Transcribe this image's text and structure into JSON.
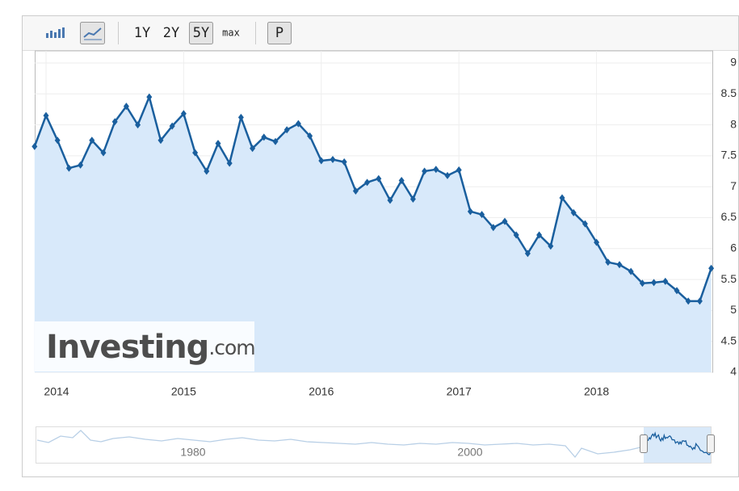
{
  "toolbar": {
    "ranges": [
      "1Y",
      "2Y",
      "5Y",
      "max"
    ],
    "active": "5Y",
    "p": "P"
  },
  "watermark": [
    "Investing",
    ".com"
  ],
  "navigator": {
    "labels": [
      "1980",
      "2000"
    ]
  },
  "chart_data": {
    "type": "line",
    "categories": [
      null,
      "2014",
      null,
      null,
      null,
      null,
      null,
      null,
      null,
      null,
      null,
      null,
      null,
      "2015",
      null,
      null,
      null,
      null,
      null,
      null,
      null,
      null,
      null,
      null,
      null,
      "2016",
      null,
      null,
      null,
      null,
      null,
      null,
      null,
      null,
      null,
      null,
      null,
      "2017",
      null,
      null,
      null,
      null,
      null,
      null,
      null,
      null,
      null,
      null,
      null,
      "2018",
      null,
      null,
      null,
      null,
      null,
      null,
      null,
      null,
      null,
      null
    ],
    "values": [
      7.65,
      8.15,
      7.75,
      7.3,
      7.35,
      7.75,
      7.55,
      8.05,
      8.3,
      8.0,
      8.45,
      7.75,
      7.98,
      8.18,
      7.55,
      7.25,
      7.7,
      7.38,
      8.12,
      7.62,
      7.8,
      7.73,
      7.92,
      8.02,
      7.82,
      7.42,
      7.44,
      7.4,
      6.93,
      7.07,
      7.13,
      6.78,
      7.1,
      6.8,
      7.25,
      7.28,
      7.18,
      7.27,
      6.6,
      6.55,
      6.34,
      6.44,
      6.22,
      5.92,
      6.22,
      6.04,
      6.82,
      6.58,
      6.4,
      6.1,
      5.78,
      5.74,
      5.63,
      5.44,
      5.45,
      5.47,
      5.32,
      5.15,
      5.15,
      5.68
    ],
    "color": "#1a5f9e",
    "ylim": [
      4,
      9
    ],
    "yticks": [
      4,
      4.5,
      5,
      5.5,
      6,
      6.5,
      7,
      7.5,
      8,
      8.5,
      9
    ],
    "grid": true
  }
}
